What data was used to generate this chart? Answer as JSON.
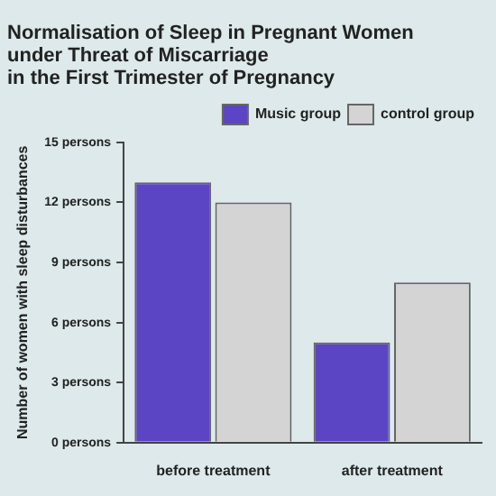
{
  "chart_data": {
    "type": "bar",
    "title": "Normalisation of Sleep in Pregnant Women\nunder Threat of Miscarriage\nin the First Trimester of Pregnancy",
    "ylabel": "Number of women with sleep disturbances",
    "categories": [
      "before treatment",
      "after treatment"
    ],
    "series": [
      {
        "name": "Music group",
        "color": "#5b45c4",
        "values": [
          13,
          5
        ]
      },
      {
        "name": "control group",
        "color": "#d4d4d4",
        "values": [
          12,
          8
        ]
      }
    ],
    "ylim": [
      0,
      15
    ],
    "yticks": [
      {
        "value": 0,
        "label": "0 persons"
      },
      {
        "value": 3,
        "label": "3 persons"
      },
      {
        "value": 6,
        "label": "6 persons"
      },
      {
        "value": 9,
        "label": "9 persons"
      },
      {
        "value": 12,
        "label": "12 persons"
      },
      {
        "value": 15,
        "label": "15 persons"
      }
    ],
    "grid": false,
    "legend": "top right"
  }
}
